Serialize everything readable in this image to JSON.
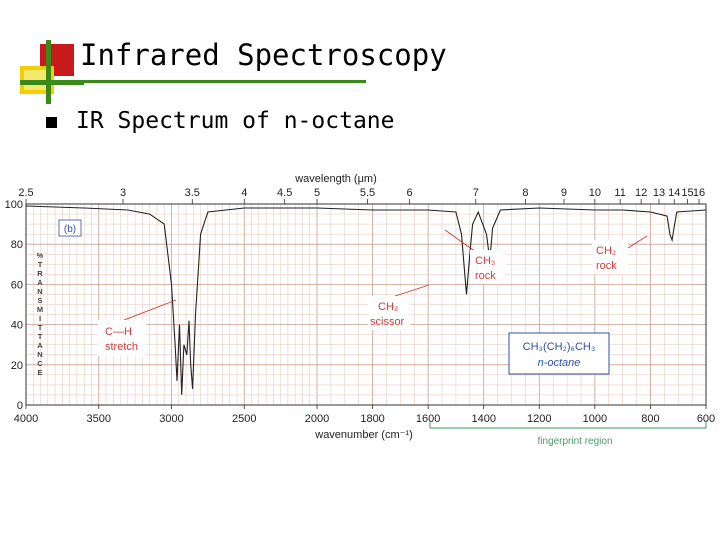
{
  "slide": {
    "title": "Infrared Spectroscopy",
    "bullet": "IR Spectrum of n-octane"
  },
  "chart_data": {
    "type": "line",
    "panel_label": "(b)",
    "top_axis": {
      "label": "wavelength (μm)",
      "ticks": [
        "2.5",
        "3",
        "3.5",
        "4",
        "4.5",
        "5",
        "5.5",
        "6",
        "7",
        "8",
        "9",
        "10",
        "11",
        "12",
        "13",
        "14",
        "15",
        "16"
      ]
    },
    "x_axis": {
      "label": "wavenumber (cm⁻¹)",
      "range": [
        4000,
        600
      ],
      "ticks": [
        "4000",
        "3500",
        "3000",
        "2500",
        "2000",
        "1800",
        "1600",
        "1400",
        "1200",
        "1000",
        "800",
        "600"
      ]
    },
    "y_axis": {
      "label": "% TRANSMITTANCE",
      "range": [
        0,
        100
      ],
      "ticks": [
        "0",
        "20",
        "40",
        "60",
        "80",
        "100"
      ]
    },
    "series": [
      {
        "name": "n-octane",
        "points": [
          [
            4000,
            99
          ],
          [
            3600,
            98
          ],
          [
            3300,
            97
          ],
          [
            3150,
            95
          ],
          [
            3050,
            90
          ],
          [
            3000,
            60
          ],
          [
            2975,
            30
          ],
          [
            2962,
            12
          ],
          [
            2945,
            40
          ],
          [
            2930,
            5
          ],
          [
            2915,
            30
          ],
          [
            2895,
            25
          ],
          [
            2880,
            42
          ],
          [
            2868,
            20
          ],
          [
            2855,
            8
          ],
          [
            2835,
            45
          ],
          [
            2800,
            85
          ],
          [
            2750,
            96
          ],
          [
            2500,
            98
          ],
          [
            2000,
            98
          ],
          [
            1800,
            97
          ],
          [
            1600,
            97
          ],
          [
            1500,
            96
          ],
          [
            1480,
            85
          ],
          [
            1470,
            68
          ],
          [
            1462,
            55
          ],
          [
            1450,
            75
          ],
          [
            1440,
            90
          ],
          [
            1420,
            96
          ],
          [
            1390,
            85
          ],
          [
            1378,
            72
          ],
          [
            1368,
            88
          ],
          [
            1340,
            97
          ],
          [
            1200,
            98
          ],
          [
            1000,
            97
          ],
          [
            900,
            97
          ],
          [
            800,
            96
          ],
          [
            740,
            94
          ],
          [
            730,
            85
          ],
          [
            722,
            82
          ],
          [
            715,
            88
          ],
          [
            705,
            96
          ],
          [
            600,
            97
          ]
        ]
      }
    ],
    "annotations": {
      "ch_stretch": [
        "C—H",
        "stretch"
      ],
      "ch2_scissor": [
        "CH₂",
        "scissor"
      ],
      "ch3_rock": [
        "CH₃",
        "rock"
      ],
      "ch2_rock": [
        "CH₂",
        "rock"
      ],
      "formula": "CH₃(CH₂)₆CH₃",
      "compound": "n-octane",
      "fingerprint": "fingerprint region"
    },
    "colors": {
      "grid_fine": "#e4c4b8",
      "grid_major": "#c99f8f",
      "trace": "#222222",
      "annotation": "#d43a3a",
      "formula_box": "#3050a8",
      "fingerprint": "#4a9a6a"
    }
  }
}
